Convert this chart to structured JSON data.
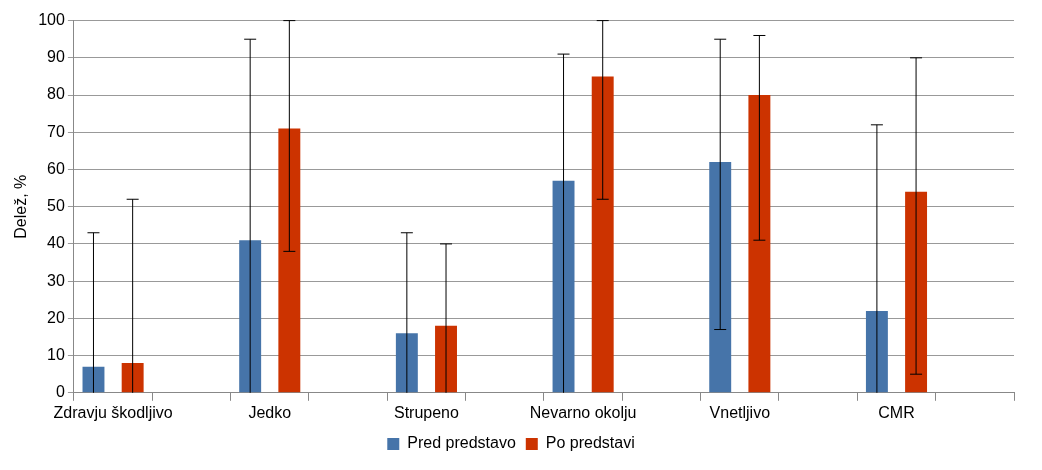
{
  "chart_data": {
    "type": "bar",
    "ylabel": "Delež, %",
    "categories": [
      "Zdravju škodljivo",
      null,
      "Jedko",
      null,
      "Strupeno",
      null,
      "Nevarno okolju",
      null,
      "Vnetljivo",
      null,
      "CMR",
      null
    ],
    "series": [
      {
        "name": "Pred predstavo",
        "color": "#4674a9",
        "values": [
          7,
          null,
          41,
          null,
          16,
          null,
          57,
          null,
          62,
          null,
          22,
          null
        ],
        "errors": [
          [
            0,
            43
          ],
          null,
          [
            0,
            95
          ],
          null,
          [
            0,
            43
          ],
          null,
          [
            0,
            91
          ],
          null,
          [
            17,
            95
          ],
          null,
          [
            0,
            72
          ],
          null
        ]
      },
      {
        "name": "Po predstavi",
        "color": "#cc3300",
        "values": [
          8,
          null,
          71,
          null,
          18,
          null,
          85,
          null,
          80,
          null,
          54,
          null
        ],
        "errors": [
          [
            0,
            52
          ],
          null,
          [
            38,
            100
          ],
          null,
          [
            0,
            40
          ],
          null,
          [
            52,
            100
          ],
          null,
          [
            41,
            96
          ],
          null,
          [
            5,
            90
          ],
          null
        ]
      }
    ],
    "ylim": [
      0,
      100
    ],
    "yticks": [
      0,
      10,
      20,
      30,
      40,
      50,
      60,
      70,
      80,
      90,
      100
    ],
    "grid": "y",
    "legend": "bottom"
  }
}
